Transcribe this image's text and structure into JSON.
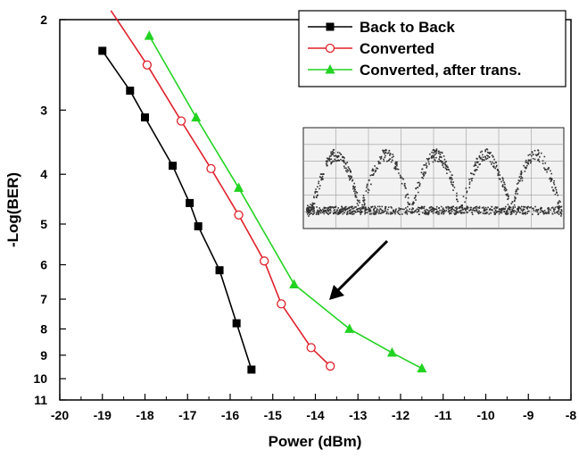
{
  "chart_data": {
    "type": "line",
    "xlabel": "Power (dBm)",
    "ylabel": "-Log(BER)",
    "xlim": [
      -20,
      -8
    ],
    "ylim": [
      2,
      11
    ],
    "y_scale": "log",
    "y_inverted": true,
    "x_ticks": [
      "-20",
      "-19",
      "-18",
      "-17",
      "-16",
      "-15",
      "-14",
      "-13",
      "-12",
      "-11",
      "-10",
      "-9",
      "-8"
    ],
    "y_ticks": [
      "2",
      "3",
      "4",
      "5",
      "6",
      "7",
      "8",
      "9",
      "10",
      "11"
    ],
    "grid": false,
    "legend_position": "top-right",
    "series": [
      {
        "name": "Back to Back",
        "color": "#000000",
        "marker": "filled-square",
        "x": [
          -19.0,
          -18.35,
          -18.0,
          -17.35,
          -16.95,
          -16.75,
          -16.25,
          -15.85,
          -15.5
        ],
        "y": [
          2.3,
          2.75,
          3.1,
          3.85,
          4.55,
          5.05,
          6.15,
          7.8,
          9.6
        ]
      },
      {
        "name": "Converted",
        "color": "#e0202a",
        "marker": "open-circle",
        "x": [
          -18.8,
          -17.95,
          -17.15,
          -16.45,
          -15.8,
          -15.2,
          -14.8,
          -14.1,
          -13.65
        ],
        "y": [
          1.92,
          2.45,
          3.15,
          3.9,
          4.8,
          5.9,
          7.15,
          8.7,
          9.45
        ]
      },
      {
        "name": "Converted, after trans.",
        "color": "#22d322",
        "marker": "filled-triangle",
        "x": [
          -17.9,
          -16.8,
          -15.8,
          -14.5,
          -13.2,
          -12.2,
          -11.5
        ],
        "y": [
          2.15,
          3.1,
          4.25,
          6.55,
          8.0,
          8.9,
          9.55
        ]
      }
    ],
    "inset": {
      "description": "eye diagram",
      "has_arrow": true
    }
  }
}
